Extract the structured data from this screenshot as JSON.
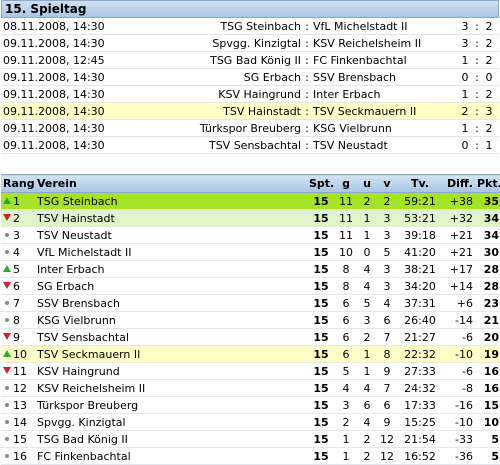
{
  "matchday": {
    "title": "15. Spieltag",
    "separator": ":",
    "matches": [
      {
        "date": "08.11.2008, 14:30",
        "home": "TSG Steinbach",
        "away": "VfL Michelstadt II",
        "score_home": "3",
        "score_away": "2",
        "highlight": false
      },
      {
        "date": "09.11.2008, 14:30",
        "home": "Spvgg. Kinzigtal",
        "away": "KSV Reichelsheim II",
        "score_home": "3",
        "score_away": "2",
        "highlight": false
      },
      {
        "date": "09.11.2008, 12:45",
        "home": "TSG Bad König II",
        "away": "FC Finkenbachtal",
        "score_home": "1",
        "score_away": "2",
        "highlight": false
      },
      {
        "date": "09.11.2008, 14:30",
        "home": "SG Erbach",
        "away": "SSV Brensbach",
        "score_home": "0",
        "score_away": "0",
        "highlight": false
      },
      {
        "date": "09.11.2008, 14:30",
        "home": "KSV Haingrund",
        "away": "Inter Erbach",
        "score_home": "1",
        "score_away": "2",
        "highlight": false
      },
      {
        "date": "09.11.2008, 14:30",
        "home": "TSV Hainstadt",
        "away": "TSV Seckmauern II",
        "score_home": "2",
        "score_away": "3",
        "highlight": true
      },
      {
        "date": "09.11.2008, 14:30",
        "home": "Türkspor Breuberg",
        "away": "KSG Vielbrunn",
        "score_home": "1",
        "score_away": "2",
        "highlight": false
      },
      {
        "date": "09.11.2008, 14:30",
        "home": "TSV Sensbachtal",
        "away": "TSV Neustadt",
        "score_home": "0",
        "score_away": "1",
        "highlight": false
      }
    ]
  },
  "standings": {
    "headers": {
      "rang": "Rang",
      "verein": "Verein",
      "spt": "Spt.",
      "g": "g",
      "u": "u",
      "v": "v",
      "tv": "Tv.",
      "diff": "Diff.",
      "pkt": "Pkt."
    },
    "colors": {
      "leader": "#a6e22a",
      "promotion": "#dff5c8",
      "highlight": "#ffffc8",
      "up": "#2eaa2e",
      "down": "#d42020",
      "same": "#8a8a8a"
    },
    "rows": [
      {
        "rank": "1",
        "trend": "up",
        "team": "TSG Steinbach",
        "spt": "15",
        "g": "11",
        "u": "2",
        "v": "2",
        "tv": "59:21",
        "diff": "+38",
        "pkt": "35",
        "style": "top"
      },
      {
        "rank": "2",
        "trend": "down",
        "team": "TSV Hainstadt",
        "spt": "15",
        "g": "11",
        "u": "1",
        "v": "3",
        "tv": "53:21",
        "diff": "+32",
        "pkt": "34",
        "style": "up"
      },
      {
        "rank": "3",
        "trend": "same",
        "team": "TSV Neustadt",
        "spt": "15",
        "g": "11",
        "u": "1",
        "v": "3",
        "tv": "39:18",
        "diff": "+21",
        "pkt": "34",
        "style": ""
      },
      {
        "rank": "4",
        "trend": "same",
        "team": "VfL Michelstadt II",
        "spt": "15",
        "g": "10",
        "u": "0",
        "v": "5",
        "tv": "41:20",
        "diff": "+21",
        "pkt": "30",
        "style": ""
      },
      {
        "rank": "5",
        "trend": "up",
        "team": "Inter Erbach",
        "spt": "15",
        "g": "8",
        "u": "4",
        "v": "3",
        "tv": "38:21",
        "diff": "+17",
        "pkt": "28",
        "style": ""
      },
      {
        "rank": "6",
        "trend": "down",
        "team": "SG Erbach",
        "spt": "15",
        "g": "8",
        "u": "4",
        "v": "3",
        "tv": "34:20",
        "diff": "+14",
        "pkt": "28",
        "style": ""
      },
      {
        "rank": "7",
        "trend": "same",
        "team": "SSV Brensbach",
        "spt": "15",
        "g": "6",
        "u": "5",
        "v": "4",
        "tv": "37:31",
        "diff": "+6",
        "pkt": "23",
        "style": ""
      },
      {
        "rank": "8",
        "trend": "same",
        "team": "KSG Vielbrunn",
        "spt": "15",
        "g": "6",
        "u": "3",
        "v": "6",
        "tv": "26:40",
        "diff": "-14",
        "pkt": "21",
        "style": ""
      },
      {
        "rank": "9",
        "trend": "down",
        "team": "TSV Sensbachtal",
        "spt": "15",
        "g": "6",
        "u": "2",
        "v": "7",
        "tv": "21:27",
        "diff": "-6",
        "pkt": "20",
        "style": ""
      },
      {
        "rank": "10",
        "trend": "up",
        "team": "TSV Seckmauern II",
        "spt": "15",
        "g": "6",
        "u": "1",
        "v": "8",
        "tv": "22:32",
        "diff": "-10",
        "pkt": "19",
        "style": "hl"
      },
      {
        "rank": "11",
        "trend": "down",
        "team": "KSV Haingrund",
        "spt": "15",
        "g": "5",
        "u": "1",
        "v": "9",
        "tv": "27:33",
        "diff": "-6",
        "pkt": "16",
        "style": ""
      },
      {
        "rank": "12",
        "trend": "same",
        "team": "KSV Reichelsheim II",
        "spt": "15",
        "g": "4",
        "u": "4",
        "v": "7",
        "tv": "24:32",
        "diff": "-8",
        "pkt": "16",
        "style": ""
      },
      {
        "rank": "13",
        "trend": "same",
        "team": "Türkspor Breuberg",
        "spt": "15",
        "g": "3",
        "u": "6",
        "v": "6",
        "tv": "17:33",
        "diff": "-16",
        "pkt": "15",
        "style": ""
      },
      {
        "rank": "14",
        "trend": "same",
        "team": "Spvgg. Kinzigtal",
        "spt": "15",
        "g": "2",
        "u": "4",
        "v": "9",
        "tv": "15:25",
        "diff": "-10",
        "pkt": "10",
        "style": ""
      },
      {
        "rank": "15",
        "trend": "same",
        "team": "TSG Bad König II",
        "spt": "15",
        "g": "1",
        "u": "2",
        "v": "12",
        "tv": "21:54",
        "diff": "-33",
        "pkt": "5",
        "style": ""
      },
      {
        "rank": "16",
        "trend": "same",
        "team": "FC Finkenbachtal",
        "spt": "15",
        "g": "1",
        "u": "2",
        "v": "12",
        "tv": "16:52",
        "diff": "-36",
        "pkt": "5",
        "style": ""
      }
    ]
  }
}
